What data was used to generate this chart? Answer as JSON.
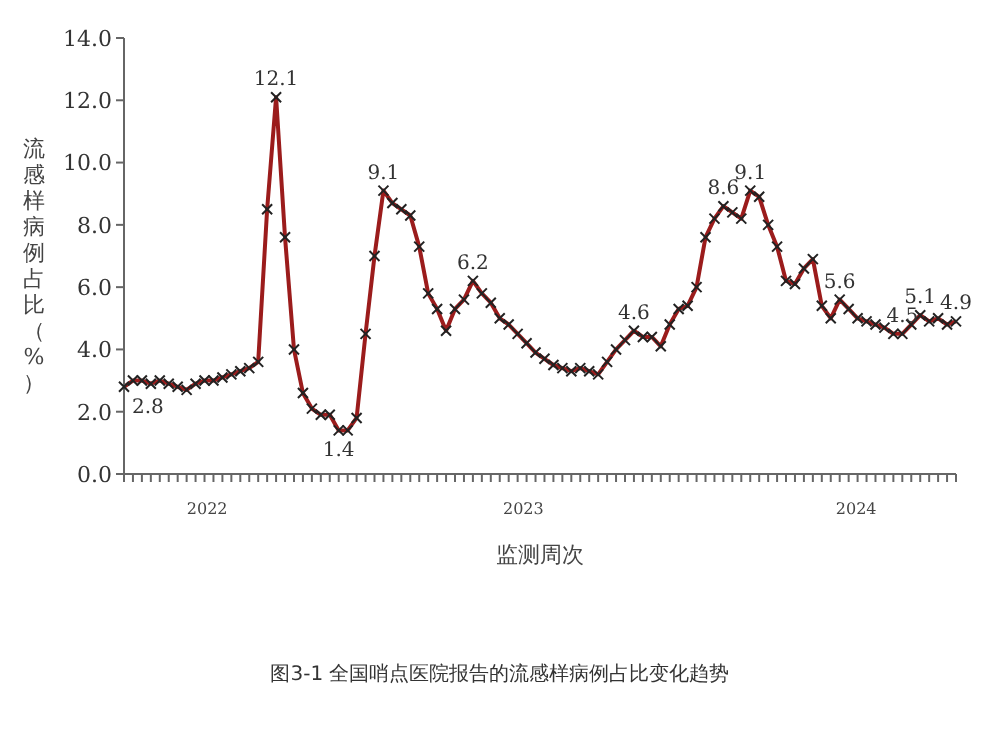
{
  "chart_data": {
    "type": "line",
    "ylabel": "流感样病例占比（%）",
    "xlabel": "监测周次",
    "categories": [
      null,
      null,
      null,
      null,
      null,
      null,
      null,
      null,
      null,
      null,
      null,
      null,
      null,
      null,
      null,
      null,
      null,
      null,
      null,
      null,
      null,
      null,
      null,
      null,
      null,
      null,
      null,
      null,
      null,
      null,
      null,
      null,
      null,
      null,
      null,
      null,
      null,
      null,
      null,
      null,
      null,
      null,
      null,
      null,
      null,
      null,
      null,
      null,
      null,
      null,
      null,
      null,
      null,
      null,
      null,
      null,
      null,
      null,
      null,
      null,
      null,
      null,
      null,
      null,
      null,
      null,
      null,
      null,
      null,
      null,
      null,
      null,
      null,
      null,
      null,
      null,
      null,
      null,
      null,
      null,
      null,
      null,
      null,
      null,
      null,
      null,
      null,
      null,
      null,
      null,
      null,
      null,
      null,
      null
    ],
    "series": [
      {
        "color": "#9b1c1c",
        "values": [
          2.8,
          3.0,
          3.0,
          2.9,
          3.0,
          2.9,
          2.8,
          2.7,
          2.9,
          3.0,
          3.0,
          3.1,
          3.2,
          3.3,
          3.4,
          3.6,
          8.5,
          12.1,
          7.6,
          4.0,
          2.6,
          2.1,
          1.9,
          1.9,
          1.4,
          1.4,
          1.8,
          4.5,
          7.0,
          9.1,
          8.7,
          8.5,
          8.3,
          7.3,
          5.8,
          5.3,
          4.6,
          5.3,
          5.6,
          6.2,
          5.8,
          5.5,
          5.0,
          4.8,
          4.5,
          4.2,
          3.9,
          3.7,
          3.5,
          3.4,
          3.3,
          3.4,
          3.3,
          3.2,
          3.6,
          4.0,
          4.3,
          4.6,
          4.4,
          4.4,
          4.1,
          4.8,
          5.3,
          5.4,
          6.0,
          7.6,
          8.2,
          8.6,
          8.4,
          8.2,
          9.1,
          8.9,
          8.0,
          7.3,
          6.2,
          6.1,
          6.6,
          6.9,
          5.4,
          5.0,
          5.6,
          5.3,
          5.0,
          4.9,
          4.8,
          4.7,
          4.5,
          4.5,
          4.8,
          5.1,
          4.9,
          5.0,
          4.8,
          4.9
        ],
        "value_labels": [
          "2.8",
          null,
          null,
          null,
          null,
          null,
          null,
          null,
          null,
          null,
          null,
          null,
          null,
          null,
          null,
          null,
          null,
          "12.1",
          null,
          null,
          null,
          null,
          null,
          null,
          "1.4",
          null,
          null,
          null,
          null,
          "9.1",
          null,
          null,
          null,
          null,
          null,
          null,
          null,
          null,
          null,
          "6.2",
          null,
          null,
          null,
          null,
          null,
          null,
          null,
          null,
          null,
          null,
          null,
          null,
          null,
          null,
          null,
          null,
          null,
          "4.6",
          null,
          null,
          null,
          null,
          null,
          null,
          null,
          null,
          null,
          "8.6",
          null,
          null,
          "9.1",
          null,
          null,
          null,
          null,
          null,
          null,
          null,
          null,
          null,
          "5.6",
          null,
          null,
          null,
          null,
          null,
          null,
          "4.5",
          null,
          "5.1",
          null,
          null,
          null,
          "4.9"
        ]
      }
    ],
    "ylim": [
      0,
      14
    ],
    "yticks": [
      {
        "value": 0,
        "label": "0.0"
      },
      {
        "value": 2,
        "label": "2.0"
      },
      {
        "value": 4,
        "label": "4.0"
      },
      {
        "value": 6,
        "label": "6.0"
      },
      {
        "value": 8,
        "label": "8.0"
      },
      {
        "value": 10,
        "label": "10.0"
      },
      {
        "value": 12,
        "label": "12.0"
      },
      {
        "value": 14,
        "label": "14.0"
      }
    ],
    "marker": "cross",
    "grid": false,
    "annotations": [
      "2022",
      "2023",
      "2024",
      "图3-1 全国哨点医院报告的流感样病例占比变化趋势"
    ]
  }
}
